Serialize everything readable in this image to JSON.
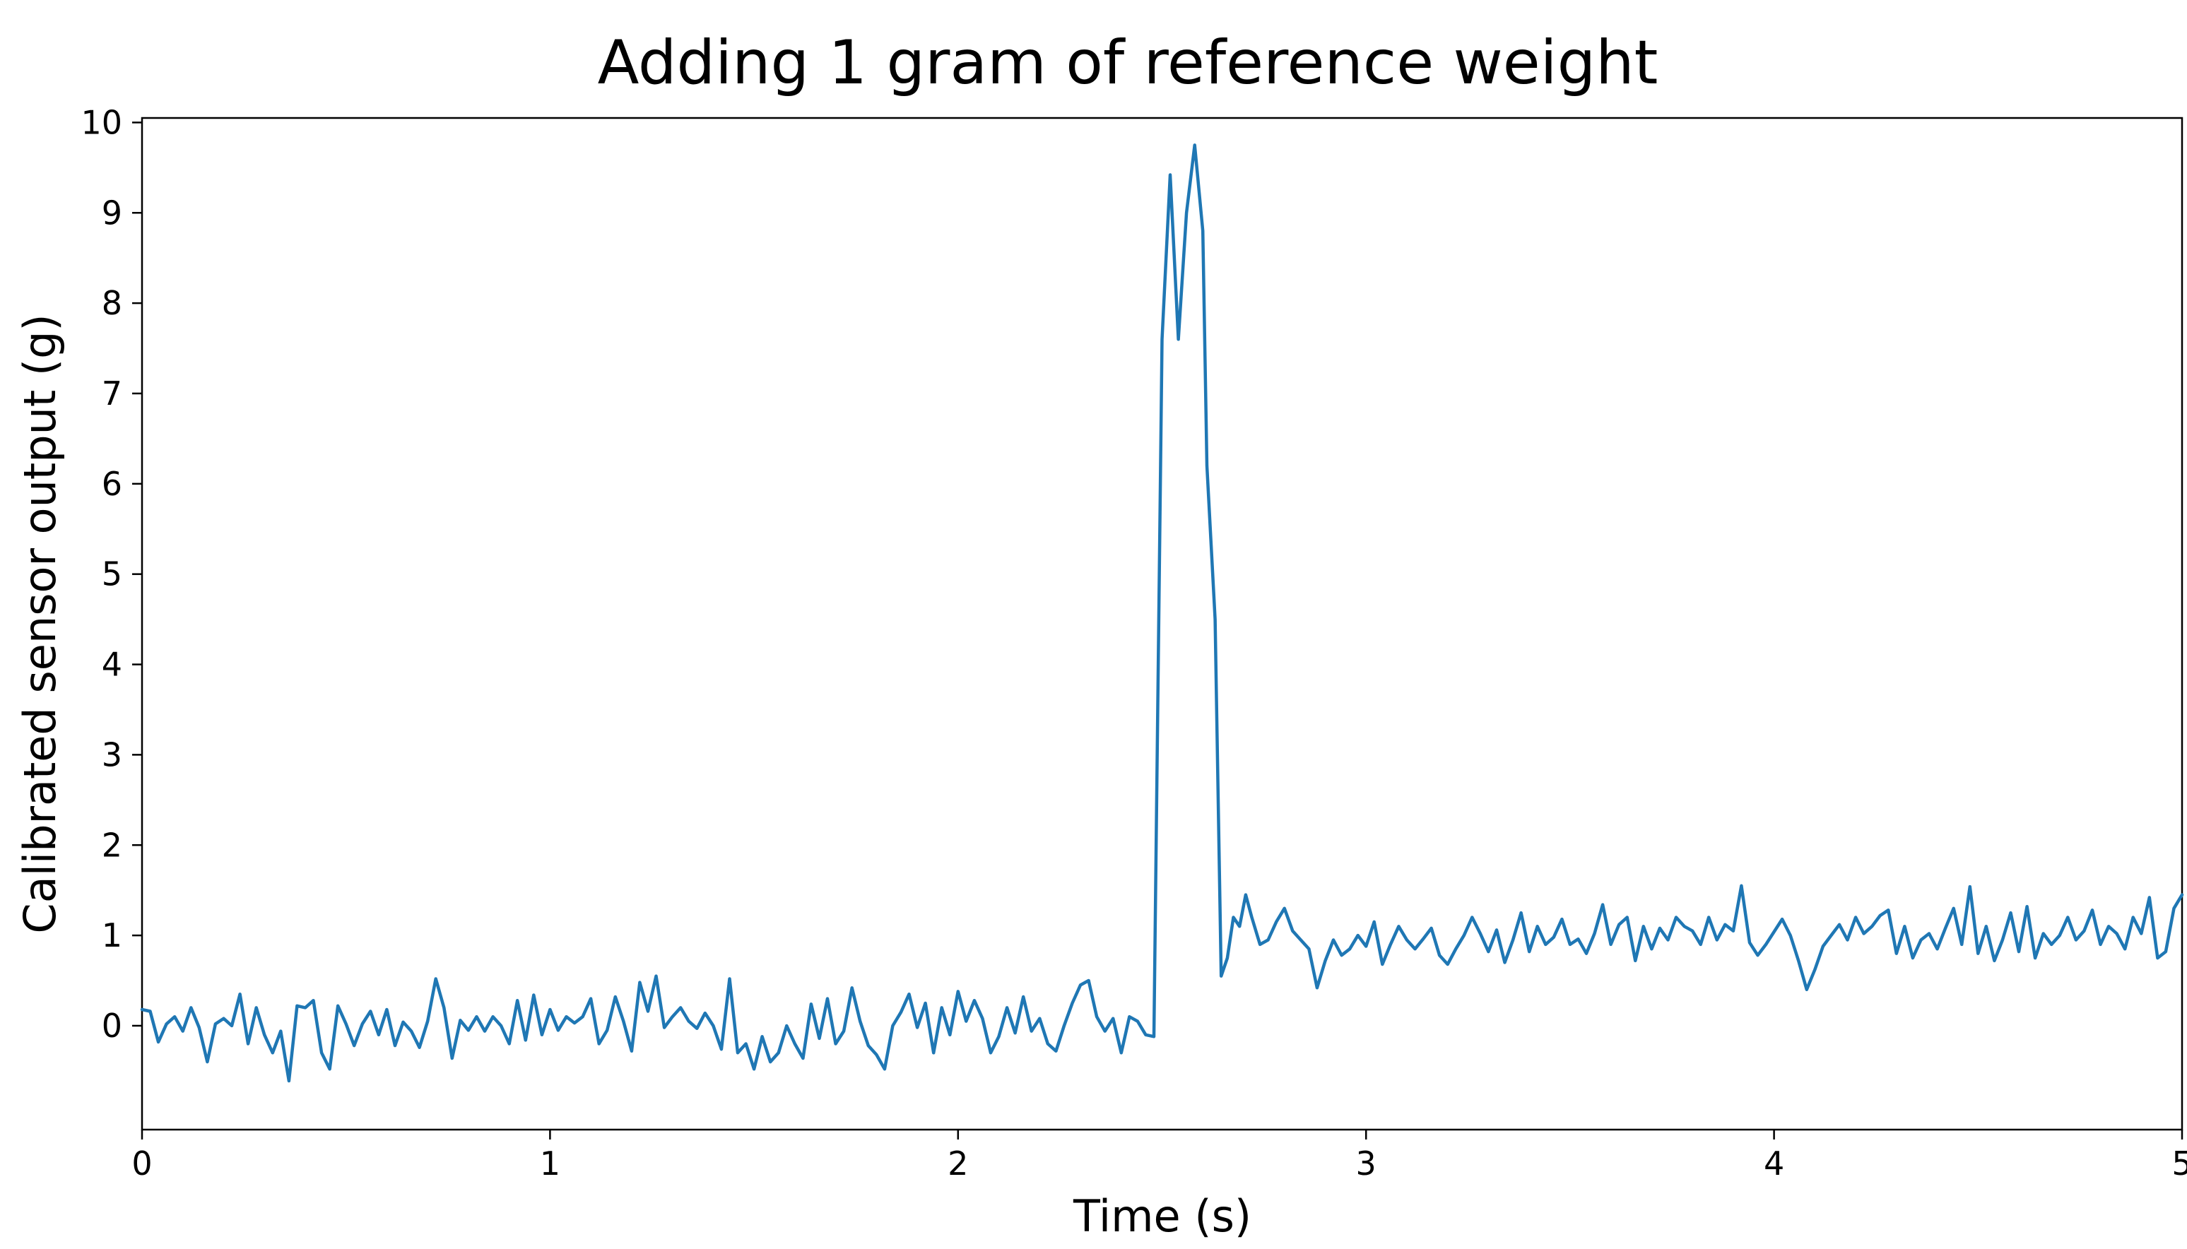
{
  "chart_data": {
    "type": "line",
    "title": "Adding 1 gram of reference weight",
    "xlabel": "Time (s)",
    "ylabel": "Calibrated sensor output (g)",
    "xlim": [
      0,
      5
    ],
    "ylim": [
      -1.15,
      10.05
    ],
    "xticks": [
      0,
      1,
      2,
      3,
      4,
      5
    ],
    "yticks": [
      0,
      1,
      2,
      3,
      4,
      5,
      6,
      7,
      8,
      9,
      10
    ],
    "grid": false,
    "line_color": "#1f77b4",
    "series": [
      {
        "x": [
          0.0,
          0.02,
          0.04,
          0.06,
          0.08,
          0.1,
          0.12,
          0.14,
          0.16,
          0.18,
          0.2,
          0.22,
          0.24,
          0.26,
          0.28,
          0.3,
          0.32,
          0.34,
          0.36,
          0.38,
          0.4,
          0.42,
          0.44,
          0.46,
          0.48,
          0.5,
          0.52,
          0.54,
          0.56,
          0.58,
          0.6,
          0.62,
          0.64,
          0.66,
          0.68,
          0.7,
          0.72,
          0.74,
          0.76,
          0.78,
          0.8,
          0.82,
          0.84,
          0.86,
          0.88,
          0.9,
          0.92,
          0.94,
          0.96,
          0.98,
          1.0,
          1.02,
          1.04,
          1.06,
          1.08,
          1.1,
          1.12,
          1.14,
          1.16,
          1.18,
          1.2,
          1.22,
          1.24,
          1.26,
          1.28,
          1.3,
          1.32,
          1.34,
          1.36,
          1.38,
          1.4,
          1.42,
          1.44,
          1.46,
          1.48,
          1.5,
          1.52,
          1.54,
          1.56,
          1.58,
          1.6,
          1.62,
          1.64,
          1.66,
          1.68,
          1.7,
          1.72,
          1.74,
          1.76,
          1.78,
          1.8,
          1.82,
          1.84,
          1.86,
          1.88,
          1.9,
          1.92,
          1.94,
          1.96,
          1.98,
          2.0,
          2.02,
          2.04,
          2.06,
          2.08,
          2.1,
          2.12,
          2.14,
          2.16,
          2.18,
          2.2,
          2.22,
          2.24,
          2.26,
          2.28,
          2.3,
          2.32,
          2.34,
          2.36,
          2.38,
          2.4,
          2.42,
          2.44,
          2.46,
          2.48,
          2.5,
          2.52,
          2.54,
          2.56,
          2.58,
          2.6,
          2.61,
          2.63,
          2.645,
          2.66,
          2.675,
          2.69,
          2.705,
          2.72,
          2.74,
          2.76,
          2.78,
          2.8,
          2.82,
          2.84,
          2.86,
          2.88,
          2.9,
          2.92,
          2.94,
          2.96,
          2.98,
          3.0,
          3.02,
          3.04,
          3.06,
          3.08,
          3.1,
          3.12,
          3.14,
          3.16,
          3.18,
          3.2,
          3.22,
          3.24,
          3.26,
          3.28,
          3.3,
          3.32,
          3.34,
          3.36,
          3.38,
          3.4,
          3.42,
          3.44,
          3.46,
          3.48,
          3.5,
          3.52,
          3.54,
          3.56,
          3.58,
          3.6,
          3.62,
          3.64,
          3.66,
          3.68,
          3.7,
          3.72,
          3.74,
          3.76,
          3.78,
          3.8,
          3.82,
          3.84,
          3.86,
          3.88,
          3.9,
          3.92,
          3.94,
          3.96,
          3.98,
          4.0,
          4.02,
          4.04,
          4.06,
          4.08,
          4.1,
          4.12,
          4.14,
          4.16,
          4.18,
          4.2,
          4.22,
          4.24,
          4.26,
          4.28,
          4.3,
          4.32,
          4.34,
          4.36,
          4.38,
          4.4,
          4.42,
          4.44,
          4.46,
          4.48,
          4.5,
          4.52,
          4.54,
          4.56,
          4.58,
          4.6,
          4.62,
          4.64,
          4.66,
          4.68,
          4.7,
          4.72,
          4.74,
          4.76,
          4.78,
          4.8,
          4.82,
          4.84,
          4.86,
          4.88,
          4.9,
          4.92,
          4.94,
          4.96,
          4.98,
          5.0
        ],
        "y": [
          0.18,
          0.16,
          -0.18,
          0.02,
          0.1,
          -0.06,
          0.2,
          -0.02,
          -0.4,
          0.02,
          0.08,
          0.0,
          0.35,
          -0.2,
          0.2,
          -0.1,
          -0.3,
          -0.06,
          -0.61,
          0.22,
          0.2,
          0.28,
          -0.3,
          -0.48,
          0.22,
          0.02,
          -0.22,
          0.02,
          0.16,
          -0.1,
          0.18,
          -0.22,
          0.04,
          -0.06,
          -0.24,
          0.05,
          0.52,
          0.2,
          -0.36,
          0.06,
          -0.05,
          0.1,
          -0.06,
          0.1,
          0.0,
          -0.2,
          0.28,
          -0.16,
          0.34,
          -0.1,
          0.18,
          -0.05,
          0.1,
          0.03,
          0.1,
          0.3,
          -0.2,
          -0.05,
          0.32,
          0.05,
          -0.28,
          0.48,
          0.16,
          0.55,
          -0.02,
          0.1,
          0.2,
          0.05,
          -0.03,
          0.14,
          0.0,
          -0.26,
          0.52,
          -0.3,
          -0.2,
          -0.48,
          -0.12,
          -0.4,
          -0.3,
          0.0,
          -0.2,
          -0.36,
          0.24,
          -0.14,
          0.3,
          -0.2,
          -0.06,
          0.42,
          0.05,
          -0.22,
          -0.32,
          -0.48,
          0.0,
          0.15,
          0.35,
          -0.02,
          0.25,
          -0.3,
          0.2,
          -0.1,
          0.38,
          0.05,
          0.28,
          0.08,
          -0.3,
          -0.12,
          0.2,
          -0.08,
          0.32,
          -0.06,
          0.08,
          -0.2,
          -0.28,
          0.0,
          0.25,
          0.45,
          0.5,
          0.1,
          -0.06,
          0.08,
          -0.3,
          0.1,
          0.05,
          -0.1,
          -0.12,
          7.6,
          9.42,
          7.6,
          9.0,
          9.75,
          8.8,
          6.2,
          4.5,
          0.55,
          0.75,
          1.2,
          1.1,
          1.45,
          1.2,
          0.9,
          0.95,
          1.15,
          1.3,
          1.05,
          0.95,
          0.85,
          0.42,
          0.72,
          0.95,
          0.78,
          0.85,
          1.0,
          0.88,
          1.15,
          0.68,
          0.9,
          1.1,
          0.95,
          0.85,
          0.96,
          1.08,
          0.78,
          0.68,
          0.85,
          1.0,
          1.2,
          1.02,
          0.82,
          1.06,
          0.7,
          0.95,
          1.25,
          0.82,
          1.1,
          0.9,
          0.98,
          1.18,
          0.9,
          0.96,
          0.8,
          1.02,
          1.34,
          0.9,
          1.12,
          1.2,
          0.72,
          1.1,
          0.85,
          1.08,
          0.95,
          1.2,
          1.1,
          1.05,
          0.9,
          1.2,
          0.95,
          1.12,
          1.05,
          1.55,
          0.92,
          0.78,
          0.9,
          1.04,
          1.18,
          1.0,
          0.72,
          0.4,
          0.62,
          0.88,
          1.0,
          1.12,
          0.95,
          1.2,
          1.02,
          1.1,
          1.22,
          1.28,
          0.8,
          1.1,
          0.75,
          0.95,
          1.02,
          0.85,
          1.08,
          1.3,
          0.9,
          1.54,
          0.8,
          1.1,
          0.72,
          0.95,
          1.25,
          0.82,
          1.32,
          0.75,
          1.02,
          0.9,
          1.0,
          1.2,
          0.95,
          1.05,
          1.28,
          0.9,
          1.1,
          1.02,
          0.85,
          1.2,
          1.02,
          1.42,
          0.75,
          0.82,
          1.3,
          1.45
        ]
      }
    ]
  }
}
